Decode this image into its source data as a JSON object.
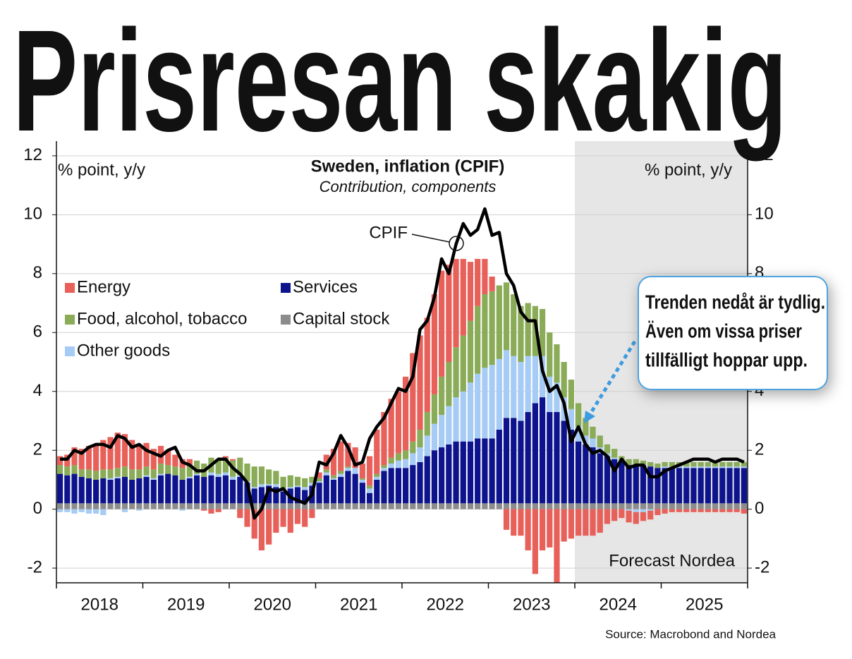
{
  "header": {
    "title": "Prisresan skakig"
  },
  "chart_data": {
    "type": "bar",
    "stacked": true,
    "title": "Sweden, inflation (CPIF)",
    "subtitle": "Contribution, components",
    "y_label": "% point, y/y",
    "y2_label": "% point, y/y",
    "categories": [
      null,
      null,
      null,
      null,
      null,
      null,
      "2018",
      null,
      null,
      null,
      null,
      null,
      null,
      null,
      null,
      null,
      null,
      null,
      "2019",
      null,
      null,
      null,
      null,
      null,
      null,
      null,
      null,
      null,
      null,
      null,
      "2020",
      null,
      null,
      null,
      null,
      null,
      null,
      null,
      null,
      null,
      null,
      null,
      "2021",
      null,
      null,
      null,
      null,
      null,
      null,
      null,
      null,
      null,
      null,
      null,
      "2022",
      null,
      null,
      null,
      null,
      null,
      null,
      null,
      null,
      null,
      null,
      null,
      "2023",
      null,
      null,
      null,
      null,
      null,
      null,
      null,
      null,
      null,
      null,
      null,
      "2024",
      null,
      null,
      null,
      null,
      null,
      null,
      null,
      null,
      null,
      null,
      null,
      "2025",
      null,
      null,
      null,
      null,
      null
    ],
    "series": [
      {
        "name": "Capital stock",
        "color": "#8c8c8c",
        "values": [
          0.2,
          0.2,
          0.2,
          0.2,
          0.2,
          0.2,
          0.2,
          0.2,
          0.2,
          0.2,
          0.2,
          0.2,
          0.2,
          0.2,
          0.2,
          0.2,
          0.2,
          0.2,
          0.2,
          0.2,
          0.2,
          0.2,
          0.2,
          0.2,
          0.2,
          0.2,
          0.2,
          0.2,
          0.2,
          0.2,
          0.2,
          0.2,
          0.2,
          0.2,
          0.2,
          0.2,
          0.2,
          0.2,
          0.2,
          0.2,
          0.2,
          0.2,
          0.2,
          0.2,
          0.2,
          0.2,
          0.2,
          0.2,
          0.2,
          0.2,
          0.2,
          0.2,
          0.2,
          0.2,
          0.2,
          0.2,
          0.2,
          0.2,
          0.2,
          0.2,
          0.2,
          0.2,
          0.2,
          0.2,
          0.2,
          0.2,
          0.2,
          0.2,
          0.2,
          0.2,
          0.2,
          0.2,
          0.2,
          0.2,
          0.2,
          0.2,
          0.2,
          0.2,
          0.2,
          0.2,
          0.2,
          0.2,
          0.2,
          0.2,
          0.2,
          0.2,
          0.2,
          0.2,
          0.2,
          0.2,
          0.2,
          0.2,
          0.2,
          0.2,
          0.2,
          0.2
        ]
      },
      {
        "name": "Services",
        "color": "#0d138c",
        "values": [
          1.0,
          0.95,
          1.0,
          0.9,
          0.85,
          0.8,
          0.85,
          0.8,
          0.85,
          0.9,
          0.8,
          0.85,
          0.9,
          0.8,
          0.95,
          1.0,
          0.95,
          0.8,
          0.85,
          0.95,
          0.9,
          0.95,
          0.9,
          0.95,
          0.8,
          0.9,
          0.7,
          0.5,
          0.55,
          0.6,
          0.55,
          0.4,
          0.5,
          0.55,
          0.45,
          0.6,
          0.7,
          0.95,
          0.8,
          0.9,
          1.1,
          1.0,
          0.7,
          0.35,
          0.8,
          1.1,
          1.2,
          1.2,
          1.2,
          1.3,
          1.4,
          1.6,
          1.8,
          1.9,
          2.0,
          2.1,
          2.1,
          2.1,
          2.2,
          2.2,
          2.2,
          2.5,
          2.9,
          2.9,
          2.8,
          3.1,
          3.4,
          3.6,
          3.1,
          3.1,
          2.8,
          2.5,
          2.1,
          2.0,
          1.9,
          1.7,
          1.6,
          1.5,
          1.4,
          1.3,
          1.3,
          1.3,
          1.25,
          1.2,
          1.2,
          1.2,
          1.2,
          1.2,
          1.2,
          1.2,
          1.2,
          1.2,
          1.2,
          1.2,
          1.2,
          1.2
        ]
      },
      {
        "name": "Other goods",
        "color": "#a6cbf5",
        "values": [
          -0.1,
          -0.1,
          -0.15,
          -0.1,
          -0.15,
          -0.15,
          -0.2,
          0.05,
          0.05,
          -0.1,
          0,
          -0.05,
          0.05,
          0.05,
          0.05,
          0,
          0,
          -0.05,
          0.05,
          0.05,
          0,
          0.1,
          0.1,
          0.1,
          0.1,
          0.05,
          0.05,
          0.05,
          0.1,
          0.05,
          0.1,
          0.1,
          0.05,
          0.05,
          0.1,
          0.1,
          0.05,
          0.1,
          0.05,
          0.1,
          0.1,
          0.2,
          0.1,
          0.15,
          0.1,
          0.1,
          0.15,
          0.25,
          0.3,
          0.4,
          0.5,
          0.7,
          0.9,
          1.1,
          1.3,
          1.5,
          1.7,
          2.0,
          2.2,
          2.4,
          2.5,
          2.4,
          2.3,
          2.1,
          2.0,
          1.9,
          1.6,
          1.4,
          1.2,
          1.0,
          0.8,
          0.7,
          0.5,
          0.3,
          0.3,
          0.2,
          0.1,
          0.05,
          0,
          -0.05,
          -0.1,
          -0.1,
          -0.05,
          0,
          0.05,
          0.05,
          0.05,
          0.05,
          0.05,
          0.05,
          0.05,
          0.05,
          0.05,
          0.05,
          0.05,
          0.05
        ]
      },
      {
        "name": "Food, alcohol, tobacco",
        "color": "#8aab57",
        "values": [
          0.3,
          0.3,
          0.3,
          0.25,
          0.3,
          0.3,
          0.3,
          0.3,
          0.3,
          0.35,
          0.35,
          0.3,
          0.3,
          0.3,
          0.35,
          0.3,
          0.3,
          0.4,
          0.4,
          0.45,
          0.45,
          0.5,
          0.5,
          0.5,
          0.55,
          0.6,
          0.6,
          0.7,
          0.6,
          0.5,
          0.45,
          0.4,
          0.4,
          0.3,
          0.3,
          0.2,
          0.1,
          0.1,
          0.1,
          0.1,
          0.05,
          0,
          0.05,
          0.1,
          0.1,
          0.1,
          0.2,
          0.25,
          0.3,
          0.4,
          0.6,
          0.8,
          1.0,
          1.3,
          1.5,
          1.7,
          1.9,
          2.1,
          2.3,
          2.5,
          2.5,
          2.5,
          2.3,
          2.1,
          1.9,
          1.8,
          1.7,
          1.6,
          1.5,
          1.3,
          1.2,
          1.0,
          0.8,
          0.6,
          0.4,
          0.4,
          0.3,
          0.3,
          0.2,
          0.2,
          0.2,
          0.15,
          0.15,
          0.15,
          0.15,
          0.15,
          0.15,
          0.15,
          0.15,
          0.15,
          0.15,
          0.15,
          0.15,
          0.15,
          0.15,
          0.15
        ]
      },
      {
        "name": "Energy",
        "color": "#e8605a",
        "values": [
          0.3,
          0.4,
          0.6,
          0.7,
          0.8,
          0.9,
          1.0,
          1.1,
          1.2,
          1.1,
          1.0,
          0.8,
          0.8,
          0.7,
          0.6,
          0.5,
          0.4,
          0.3,
          0.2,
          0.0,
          -0.05,
          -0.15,
          -0.1,
          0.05,
          0.05,
          -0.3,
          -0.6,
          -1.0,
          -1.4,
          -1.2,
          -0.8,
          -0.6,
          -0.8,
          -0.5,
          -0.6,
          -0.3,
          0.2,
          0.5,
          0.9,
          1.0,
          0.8,
          0.7,
          0.5,
          1.0,
          1.5,
          1.8,
          2.0,
          2.1,
          2.5,
          3.0,
          3.2,
          3.2,
          3.4,
          3.6,
          3.3,
          3.0,
          2.6,
          2.0,
          1.6,
          1.2,
          0.5,
          0,
          -0.7,
          -0.9,
          -0.9,
          -1.4,
          -2.2,
          -1.4,
          -1.3,
          -2.5,
          -1.1,
          -1.0,
          -0.9,
          -0.9,
          -0.9,
          -0.8,
          -0.5,
          -0.4,
          -0.3,
          -0.4,
          -0.4,
          -0.3,
          -0.3,
          -0.2,
          -0.15,
          -0.1,
          -0.1,
          -0.1,
          -0.1,
          -0.1,
          -0.1,
          -0.1,
          -0.1,
          -0.1,
          -0.1,
          -0.15
        ]
      }
    ],
    "line": {
      "name": "CPIF",
      "color": "#000000",
      "values": [
        1.7,
        1.7,
        2.0,
        1.9,
        2.1,
        2.2,
        2.2,
        2.1,
        2.5,
        2.4,
        2.1,
        2.2,
        2.0,
        1.9,
        1.8,
        2.0,
        2.1,
        1.6,
        1.5,
        1.3,
        1.3,
        1.5,
        1.7,
        1.7,
        1.4,
        1.2,
        0.9,
        -0.3,
        0.0,
        0.7,
        0.6,
        0.7,
        0.4,
        0.3,
        0.2,
        0.5,
        1.6,
        1.5,
        1.9,
        2.5,
        2.1,
        1.5,
        1.6,
        2.4,
        2.8,
        3.1,
        3.6,
        4.1,
        4.0,
        4.5,
        6.1,
        6.4,
        7.2,
        8.5,
        8.0,
        9.0,
        9.7,
        9.3,
        9.5,
        10.2,
        9.3,
        9.4,
        8.0,
        7.6,
        6.7,
        6.4,
        6.4,
        4.7,
        4.0,
        4.2,
        3.6,
        2.3,
        2.8,
        2.2,
        1.9,
        2.0,
        1.8,
        1.3,
        1.7,
        1.4,
        1.5,
        1.5,
        1.1,
        1.1,
        1.3,
        1.4,
        1.5,
        1.6,
        1.7,
        1.7,
        1.7,
        1.6,
        1.7,
        1.7,
        1.7,
        1.6
      ]
    },
    "ylim": [
      -2.5,
      12.5
    ],
    "yticks": [
      -2,
      0,
      2,
      4,
      6,
      8,
      10,
      12
    ],
    "y2lim": [
      -2.5,
      12.5
    ],
    "y2ticks": [
      -2,
      0,
      2,
      4,
      6,
      8,
      10,
      12
    ],
    "grid": true,
    "forecast_label": "Forecast Nordea",
    "callout": [
      "Trenden nedåt är tydlig.",
      "Även om vissa priser",
      "tillfälligt hoppar upp."
    ],
    "source": "Source: Macrobond and Nordea"
  }
}
